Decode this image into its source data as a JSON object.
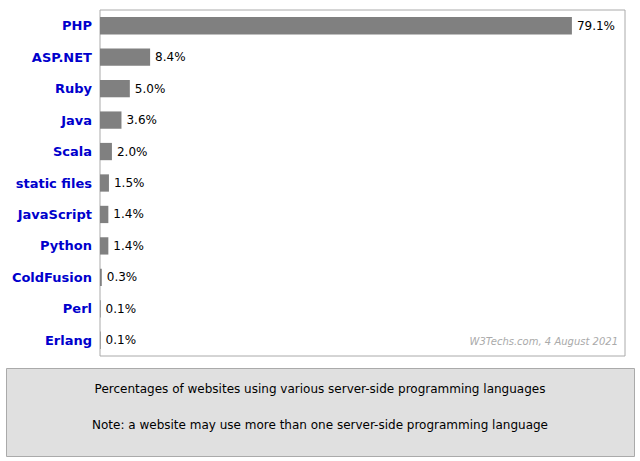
{
  "chart_data": {
    "type": "bar",
    "orientation": "horizontal",
    "categories": [
      "PHP",
      "ASP.NET",
      "Ruby",
      "Java",
      "Scala",
      "static files",
      "JavaScript",
      "Python",
      "ColdFusion",
      "Perl",
      "Erlang"
    ],
    "values": [
      79.1,
      8.4,
      5.0,
      3.6,
      2.0,
      1.5,
      1.4,
      1.4,
      0.3,
      0.1,
      0.1
    ],
    "value_labels": [
      "79.1%",
      "8.4%",
      "5.0%",
      "3.6%",
      "2.0%",
      "1.5%",
      "1.4%",
      "1.4%",
      "0.3%",
      "0.1%",
      "0.1%"
    ],
    "data_labels": true,
    "color": "#808080",
    "xlim": [
      0,
      88
    ],
    "tick_labels": "y",
    "grid": false,
    "annotations": [
      "W3Techs.com, 4 August 2021",
      "Percentages of websites using various server-side programming languages",
      "Note: a website may use more than one server-side programming language"
    ]
  }
}
